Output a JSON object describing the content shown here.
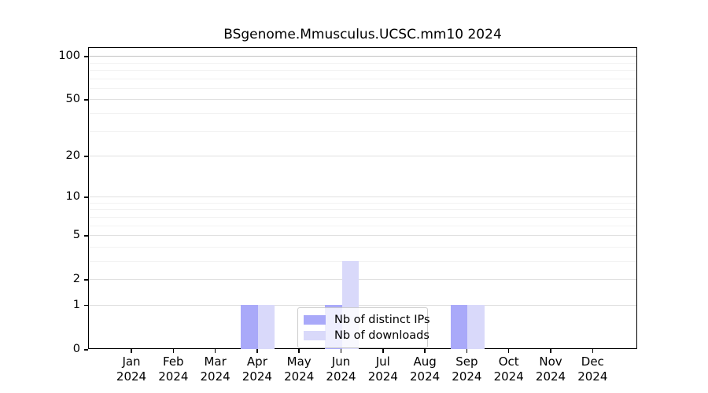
{
  "title": "BSgenome.Mmusculus.UCSC.mm10 2024",
  "chart_data": {
    "type": "bar",
    "title": "BSgenome.Mmusculus.UCSC.mm10 2024",
    "xlabel": "",
    "ylabel": "",
    "year_label": "2024",
    "categories": [
      "Jan",
      "Feb",
      "Mar",
      "Apr",
      "May",
      "Jun",
      "Jul",
      "Aug",
      "Sep",
      "Oct",
      "Nov",
      "Dec"
    ],
    "series": [
      {
        "name": "Nb of distinct IPs",
        "color": "#a9a9f9",
        "values": [
          0,
          0,
          0,
          1,
          0,
          1,
          0,
          0,
          1,
          0,
          0,
          0
        ]
      },
      {
        "name": "Nb of downloads",
        "color": "#d9d9fa",
        "values": [
          0,
          0,
          0,
          1,
          0,
          3,
          0,
          0,
          1,
          0,
          0,
          0
        ]
      }
    ],
    "yscale": "log1p",
    "yticks": [
      0,
      1,
      2,
      5,
      10,
      20,
      50,
      100
    ],
    "minor_yticks": [
      3,
      4,
      6,
      7,
      8,
      9,
      30,
      40,
      60,
      70,
      80,
      90
    ],
    "ylim": [
      0,
      112
    ],
    "grid": "horizontal",
    "legend": {
      "position": "lower center",
      "entries": [
        "Nb of distinct IPs",
        "Nb of downloads"
      ]
    }
  }
}
